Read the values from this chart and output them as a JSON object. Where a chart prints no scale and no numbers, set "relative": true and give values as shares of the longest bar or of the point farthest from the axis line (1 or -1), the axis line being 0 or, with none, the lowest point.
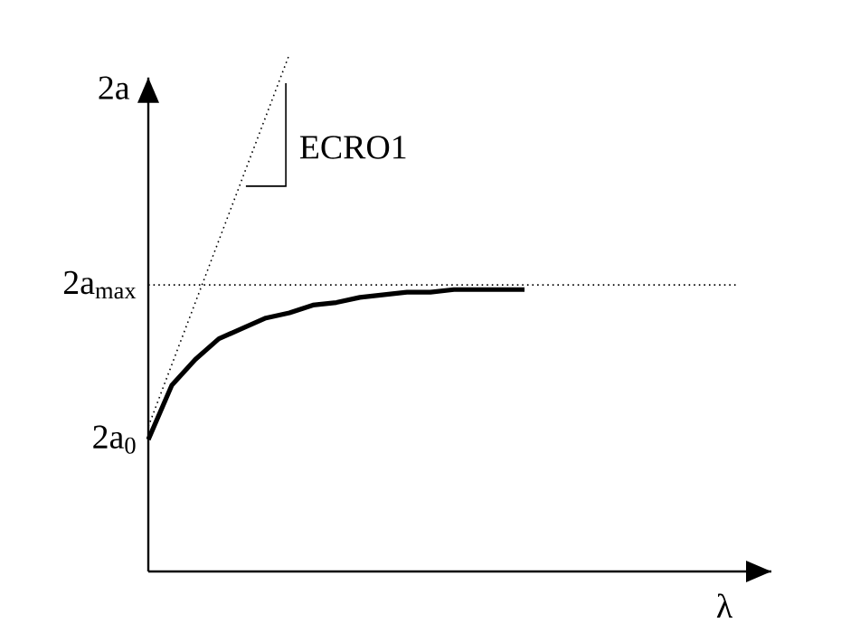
{
  "chart_data": {
    "type": "line",
    "relative": true,
    "xlabel": "λ",
    "ylabel": "2a",
    "categories": [
      null,
      null,
      null,
      null,
      null,
      null,
      null,
      null,
      null,
      null,
      null,
      null,
      null,
      null,
      null,
      null,
      null,
      null,
      null,
      null,
      null,
      null,
      null,
      null,
      null,
      null,
      null
    ],
    "series": [
      {
        "color": "#000000",
        "line_style": "solid",
        "values": [
          0.255,
          0.36,
          0.41,
          0.45,
          0.47,
          0.49,
          0.5,
          0.515,
          0.52,
          0.53,
          0.535,
          0.54,
          0.54,
          0.545,
          0.545,
          0.545,
          0.545,
          null,
          null,
          null,
          null,
          null,
          null,
          null,
          null,
          null,
          null
        ]
      },
      {
        "color": "#000000",
        "line_style": "dotted",
        "values": [
          0.28,
          null,
          null,
          null,
          null,
          null,
          1,
          null,
          null,
          null,
          null,
          null,
          null,
          null,
          null,
          null,
          null,
          null,
          null,
          null,
          null,
          null,
          null,
          null,
          null,
          null,
          null
        ]
      }
    ],
    "ref_lines": [
      {
        "axis": "y",
        "value": 0.554,
        "label": "2a$_{max}$",
        "line_style": "dotted",
        "color": "#000000"
      }
    ],
    "annotations": [
      "2a$_{0}$",
      "ECRO1"
    ]
  }
}
